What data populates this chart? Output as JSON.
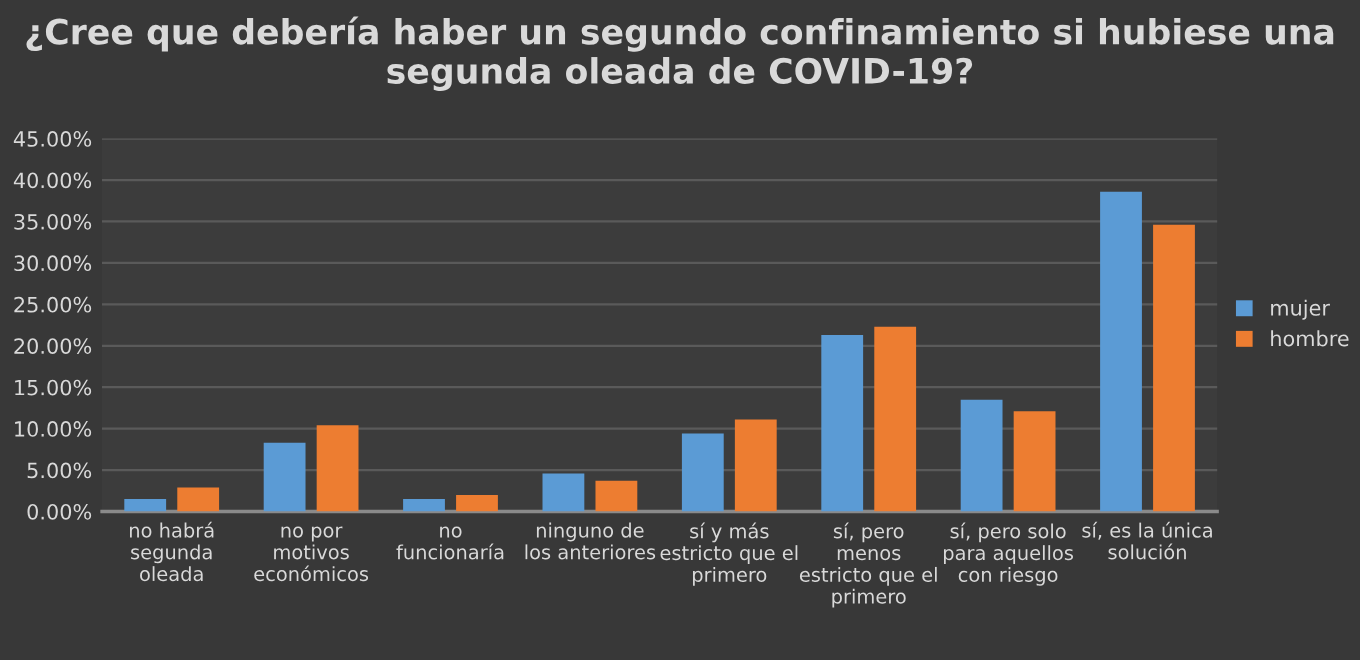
{
  "chart_data": {
    "type": "bar",
    "title": "¿Cree que debería haber un segundo confinamiento si hubiese una segunda oleada de COVID-19?",
    "categories": [
      "no habrá\nsegunda\noleada",
      "no por\nmotivos\neconómicos",
      "no\nfuncionaría",
      "ninguno de\nlos anteriores",
      "sí y más\nestricto que el\nprimero",
      "sí, pero\nmenos\nestricto que el\nprimero",
      "sí, pero solo\npara aquellos\ncon riesgo",
      "sí, es la única\nsolución"
    ],
    "series": [
      {
        "name": "mujer",
        "color": "#5b9bd5",
        "values": [
          1.5,
          8.3,
          1.5,
          4.6,
          9.4,
          21.3,
          13.5,
          38.6
        ]
      },
      {
        "name": "hombre",
        "color": "#ed7d31",
        "values": [
          2.9,
          10.4,
          2.0,
          3.7,
          11.1,
          22.3,
          12.1,
          34.6
        ]
      }
    ],
    "ylim": [
      0,
      45
    ],
    "yticks": [
      {
        "value": 0,
        "label": "0.00%"
      },
      {
        "value": 5,
        "label": "5.00%"
      },
      {
        "value": 10,
        "label": "10.00%"
      },
      {
        "value": 15,
        "label": "15.00%"
      },
      {
        "value": 20,
        "label": "20.00%"
      },
      {
        "value": 25,
        "label": "25.00%"
      },
      {
        "value": 30,
        "label": "30.00%"
      },
      {
        "value": 35,
        "label": "35.00%"
      },
      {
        "value": 40,
        "label": "40.00%"
      },
      {
        "value": 45,
        "label": "45.00%"
      }
    ],
    "grid": "y",
    "legend": "right"
  }
}
